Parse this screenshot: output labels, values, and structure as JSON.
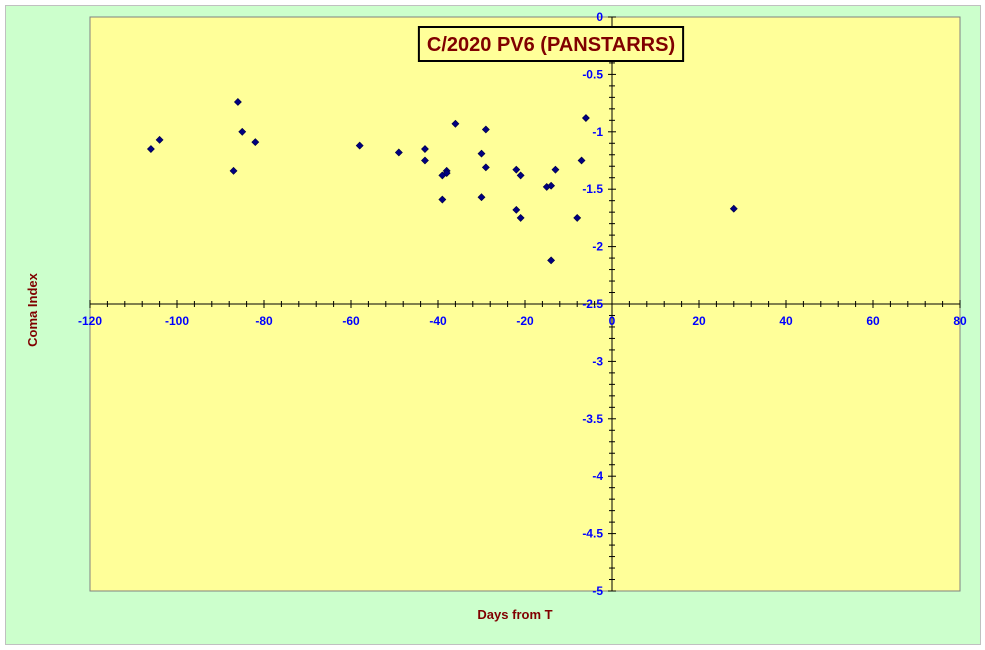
{
  "chart_data": {
    "type": "scatter",
    "title": "C/2020 PV6 (PANSTARRS)",
    "xlabel": "Days from T",
    "ylabel": "Coma Index",
    "xlim": [
      -120,
      80
    ],
    "ylim": [
      -5,
      0
    ],
    "x_ticks": [
      -120,
      -100,
      -80,
      -60,
      -40,
      -20,
      0,
      20,
      40,
      60,
      80
    ],
    "y_ticks": [
      0,
      -0.5,
      -1,
      -1.5,
      -2,
      -2.5,
      -3,
      -3.5,
      -4,
      -4.5,
      -5
    ],
    "grid": false,
    "legend": "none",
    "colors": {
      "plot_background": "#ffff99",
      "chart_background": "#ccffcc",
      "marker": "#000080",
      "tick_labels": "#0000ff",
      "titles": "#800000"
    },
    "points": [
      {
        "x": -106,
        "y": -1.15
      },
      {
        "x": -104,
        "y": -1.07
      },
      {
        "x": -87,
        "y": -1.34
      },
      {
        "x": -86,
        "y": -0.74
      },
      {
        "x": -85,
        "y": -1.0
      },
      {
        "x": -82,
        "y": -1.09
      },
      {
        "x": -58,
        "y": -1.12
      },
      {
        "x": -49,
        "y": -1.18
      },
      {
        "x": -43,
        "y": -1.15
      },
      {
        "x": -43,
        "y": -1.25
      },
      {
        "x": -39,
        "y": -1.38
      },
      {
        "x": -39,
        "y": -1.59
      },
      {
        "x": -38,
        "y": -1.34
      },
      {
        "x": -38,
        "y": -1.36
      },
      {
        "x": -36,
        "y": -0.93
      },
      {
        "x": -30,
        "y": -1.19
      },
      {
        "x": -30,
        "y": -1.57
      },
      {
        "x": -29,
        "y": -0.98
      },
      {
        "x": -29,
        "y": -1.31
      },
      {
        "x": -22,
        "y": -1.33
      },
      {
        "x": -22,
        "y": -1.68
      },
      {
        "x": -21,
        "y": -1.38
      },
      {
        "x": -21,
        "y": -1.75
      },
      {
        "x": -15,
        "y": -1.48
      },
      {
        "x": -14,
        "y": -1.47
      },
      {
        "x": -14,
        "y": -2.12
      },
      {
        "x": -13,
        "y": -1.33
      },
      {
        "x": -8,
        "y": -1.75
      },
      {
        "x": -7,
        "y": -1.25
      },
      {
        "x": -6,
        "y": -0.88
      },
      {
        "x": 28,
        "y": -1.67
      }
    ]
  }
}
